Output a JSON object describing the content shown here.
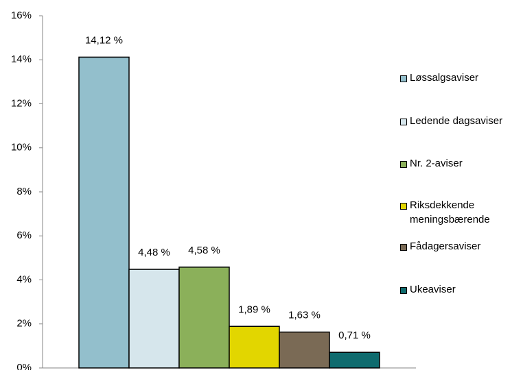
{
  "chart_data": {
    "type": "bar",
    "categories": [
      null
    ],
    "series": [
      {
        "name": "Løssalgsaviser",
        "color": "#93bfcc",
        "values": [
          14.12
        ],
        "value_labels": [
          "14,12 %"
        ]
      },
      {
        "name": "Ledende dagsaviser",
        "color": "#d6e6ec",
        "values": [
          4.48
        ],
        "value_labels": [
          "4,48 %"
        ]
      },
      {
        "name": "Nr. 2-aviser",
        "color": "#8bb05a",
        "values": [
          4.58
        ],
        "value_labels": [
          "4,58 %"
        ]
      },
      {
        "name": "Riksdekkende meningsbærende",
        "color": "#e2d600",
        "values": [
          1.89
        ],
        "value_labels": [
          "1,89 %"
        ]
      },
      {
        "name": "Fådagersaviser",
        "color": "#7a6a55",
        "values": [
          1.63
        ],
        "value_labels": [
          "1,63 %"
        ]
      },
      {
        "name": "Ukeaviser",
        "color": "#0e6b6e",
        "values": [
          0.71
        ],
        "value_labels": [
          "0,71 %"
        ]
      }
    ],
    "ylim": [
      0,
      16
    ],
    "yticks": [
      {
        "value": 0,
        "label": "0%"
      },
      {
        "value": 2,
        "label": "2%"
      },
      {
        "value": 4,
        "label": "4%"
      },
      {
        "value": 6,
        "label": "6%"
      },
      {
        "value": 8,
        "label": "8%"
      },
      {
        "value": 10,
        "label": "10%"
      },
      {
        "value": 12,
        "label": "12%"
      },
      {
        "value": 14,
        "label": "14%"
      },
      {
        "value": 16,
        "label": "16%"
      }
    ],
    "grid": false,
    "legend": "right"
  }
}
